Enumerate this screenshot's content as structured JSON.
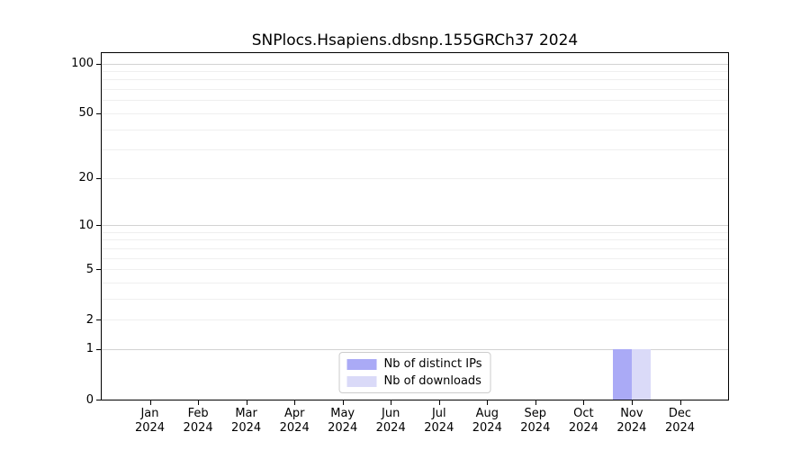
{
  "chart_data": {
    "type": "bar",
    "title": "SNPlocs.Hsapiens.dbsnp.155GRCh37 2024",
    "categories": [
      "Jan 2024",
      "Feb 2024",
      "Mar 2024",
      "Apr 2024",
      "May 2024",
      "Jun 2024",
      "Jul 2024",
      "Aug 2024",
      "Sep 2024",
      "Oct 2024",
      "Nov 2024",
      "Dec 2024"
    ],
    "months": [
      "Jan",
      "Feb",
      "Mar",
      "Apr",
      "May",
      "Jun",
      "Jul",
      "Aug",
      "Sep",
      "Oct",
      "Nov",
      "Dec"
    ],
    "year": "2024",
    "series": [
      {
        "name": "Nb of distinct IPs",
        "color": "#aaaaf6",
        "values": [
          0,
          0,
          0,
          0,
          0,
          0,
          0,
          0,
          0,
          0,
          1,
          0
        ]
      },
      {
        "name": "Nb of downloads",
        "color": "#dadaf8",
        "values": [
          0,
          0,
          0,
          0,
          0,
          0,
          0,
          0,
          0,
          0,
          1,
          0
        ]
      }
    ],
    "xlabel": "",
    "ylabel": "",
    "y_axis": {
      "scale": "log1p",
      "tick_values": [
        0,
        1,
        2,
        5,
        10,
        20,
        50,
        100
      ],
      "minor_grid_values": [
        2,
        3,
        4,
        5,
        6,
        7,
        8,
        9,
        20,
        30,
        40,
        50,
        60,
        70,
        80,
        90
      ],
      "major_grid_values": [
        1,
        10,
        100
      ],
      "ylim": [
        0,
        115
      ]
    },
    "grid": true,
    "legend_position": "lower center"
  }
}
